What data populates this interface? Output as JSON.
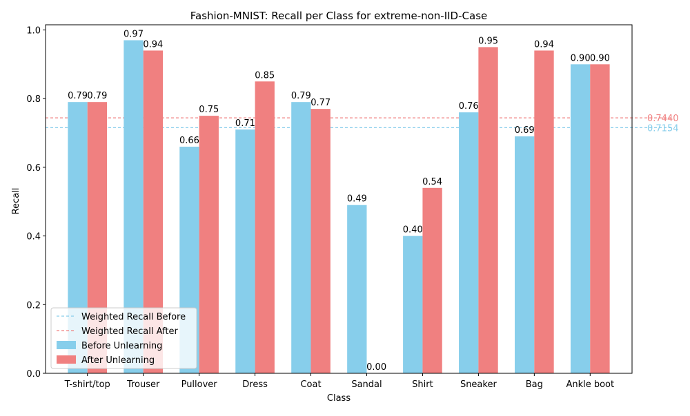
{
  "chart_data": {
    "type": "bar",
    "title": "Fashion-MNIST: Recall per Class for extreme-non-IID-Case",
    "xlabel": "Class",
    "ylabel": "Recall",
    "ylim": [
      0,
      1.0
    ],
    "yticks": [
      "0.0",
      "0.2",
      "0.4",
      "0.6",
      "0.8",
      "1.0"
    ],
    "categories": [
      "T-shirt/top",
      "Trouser",
      "Pullover",
      "Dress",
      "Coat",
      "Sandal",
      "Shirt",
      "Sneaker",
      "Bag",
      "Ankle boot"
    ],
    "series": [
      {
        "name": "Before Unlearning",
        "color": "#87ceeb",
        "values": [
          0.79,
          0.97,
          0.66,
          0.71,
          0.79,
          0.49,
          0.4,
          0.76,
          0.69,
          0.9
        ],
        "labels": [
          "0.79",
          "0.97",
          "0.66",
          "0.71",
          "0.79",
          "0.49",
          "0.40",
          "0.76",
          "0.69",
          "0.90"
        ]
      },
      {
        "name": "After Unlearning",
        "color": "#f08080",
        "values": [
          0.79,
          0.94,
          0.75,
          0.85,
          0.77,
          0.0,
          0.54,
          0.95,
          0.94,
          0.9
        ],
        "labels": [
          "0.79",
          "0.94",
          "0.75",
          "0.85",
          "0.77",
          "0.00",
          "0.54",
          "0.95",
          "0.94",
          "0.90"
        ]
      }
    ],
    "reference_lines": [
      {
        "name": "Weighted Recall Before",
        "value": 0.7154,
        "label": "0.7154",
        "color": "#87ceeb"
      },
      {
        "name": "Weighted Recall After",
        "value": 0.744,
        "label": "0.7440",
        "color": "#f08080"
      }
    ],
    "legend_position": "lower-left",
    "grid": false
  }
}
